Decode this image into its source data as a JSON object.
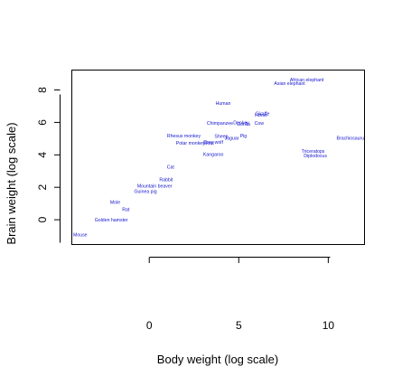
{
  "chart_data": {
    "type": "scatter",
    "title": "",
    "xlabel": "Body weight (log scale)",
    "ylabel": "Brain weight (log scale)",
    "xlim": [
      -4.3,
      12
    ],
    "ylim": [
      -1.5,
      9.2
    ],
    "x_ticks": [
      0,
      5,
      10
    ],
    "y_ticks": [
      0,
      2,
      4,
      6,
      8
    ],
    "marker": "text",
    "color": "#0000cc",
    "points": [
      {
        "name": "Mouse",
        "x": -3.77,
        "y": -0.92
      },
      {
        "name": "Golden hamster",
        "x": -2.12,
        "y": 0.0
      },
      {
        "name": "Rat",
        "x": -1.31,
        "y": 0.64
      },
      {
        "name": "Mole",
        "x": -1.9,
        "y": 1.1
      },
      {
        "name": "Guinea pig",
        "x": -0.21,
        "y": 1.75
      },
      {
        "name": "Mountain beaver",
        "x": 0.3,
        "y": 2.09
      },
      {
        "name": "Rabbit",
        "x": 0.94,
        "y": 2.49
      },
      {
        "name": "Cat",
        "x": 1.19,
        "y": 3.26
      },
      {
        "name": "Kangaroo",
        "x": 3.58,
        "y": 4.04
      },
      {
        "name": "Potar monkey",
        "x": 2.3,
        "y": 4.75
      },
      {
        "name": "Grey wolf",
        "x": 3.57,
        "y": 4.8
      },
      {
        "name": "Goat",
        "x": 3.33,
        "y": 4.74
      },
      {
        "name": "Rhesus monkey",
        "x": 1.93,
        "y": 5.19
      },
      {
        "name": "Sheep",
        "x": 4.02,
        "y": 5.16
      },
      {
        "name": "Jaguar",
        "x": 4.61,
        "y": 5.04
      },
      {
        "name": "Pig",
        "x": 5.26,
        "y": 5.19
      },
      {
        "name": "Chimpanzee",
        "x": 3.95,
        "y": 5.96
      },
      {
        "name": "Donkey",
        "x": 5.14,
        "y": 6.0
      },
      {
        "name": "Gorilla",
        "x": 5.26,
        "y": 5.92
      },
      {
        "name": "Cow",
        "x": 6.14,
        "y": 5.98
      },
      {
        "name": "Horse",
        "x": 6.25,
        "y": 6.47
      },
      {
        "name": "Giraffe",
        "x": 6.33,
        "y": 6.55
      },
      {
        "name": "Human",
        "x": 4.13,
        "y": 7.19
      },
      {
        "name": "Asian elephant",
        "x": 7.84,
        "y": 8.41
      },
      {
        "name": "African elephant",
        "x": 8.8,
        "y": 8.64
      },
      {
        "name": "Brachiosaurus",
        "x": 11.3,
        "y": 5.05
      },
      {
        "name": "Triceratops",
        "x": 9.15,
        "y": 4.25
      },
      {
        "name": "Diplodocus",
        "x": 9.28,
        "y": 3.97
      }
    ]
  }
}
